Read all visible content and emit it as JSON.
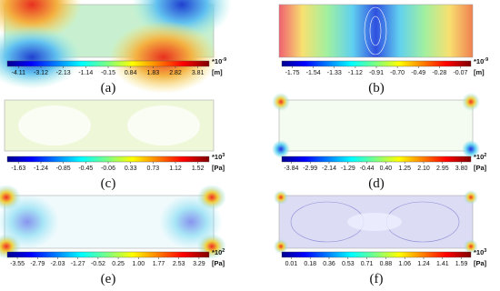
{
  "panels": [
    {
      "label": "(a)",
      "ticks": [
        "-4.11",
        "-3.12",
        "-2.13",
        "-1.14",
        "-0.15",
        "0.84",
        "1.83",
        "2.82",
        "3.81"
      ],
      "multiplier": "*10",
      "power": "-9",
      "unit": "[m]"
    },
    {
      "label": "(b)",
      "ticks": [
        "-1.75",
        "-1.54",
        "-1.33",
        "-1.12",
        "-0.91",
        "-0.70",
        "-0.49",
        "-0.28",
        "-0.07"
      ],
      "multiplier": "*10",
      "power": "-9",
      "unit": "[m]"
    },
    {
      "label": "(c)",
      "ticks": [
        "-1.63",
        "-1.24",
        "-0.85",
        "-0.45",
        "-0.06",
        "0.33",
        "0.73",
        "1.12",
        "1.52"
      ],
      "multiplier": "*10",
      "power": "3",
      "unit": "[Pa]"
    },
    {
      "label": "(d)",
      "ticks": [
        "-3.84",
        "-2.99",
        "-2.14",
        "-1.29",
        "-0.44",
        "0.40",
        "1.25",
        "2.10",
        "2.95",
        "3.80"
      ],
      "multiplier": "*10",
      "power": "2",
      "unit": "[Pa]"
    },
    {
      "label": "(e)",
      "ticks": [
        "-3.55",
        "-2.79",
        "-2.03",
        "-1.27",
        "-0.52",
        "0.25",
        "1.00",
        "1.77",
        "2.53",
        "3.29"
      ],
      "multiplier": "*10",
      "power": "2",
      "unit": "[Pa]"
    },
    {
      "label": "(f)",
      "ticks": [
        "0.01",
        "0.18",
        "0.36",
        "0.53",
        "0.71",
        "0.88",
        "1.06",
        "1.24",
        "1.41",
        "1.59"
      ],
      "multiplier": "*10",
      "power": "3",
      "unit": "[Pa]"
    }
  ]
}
